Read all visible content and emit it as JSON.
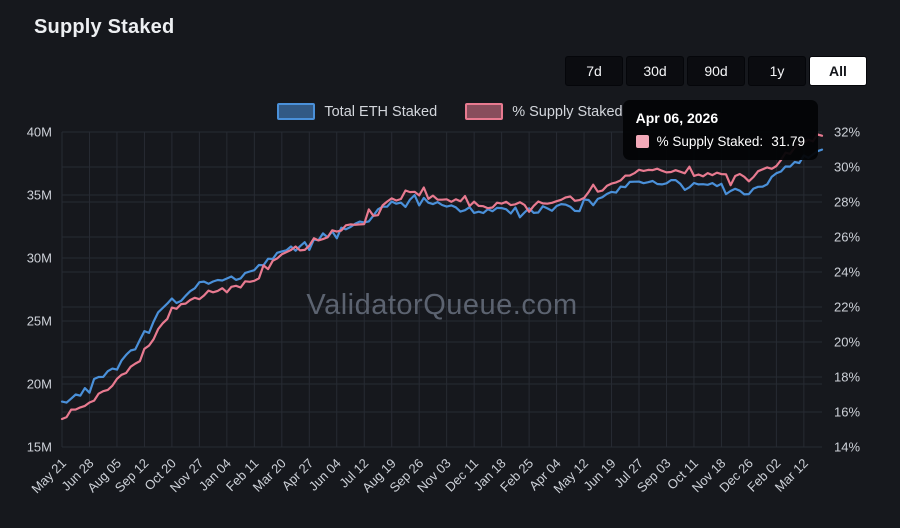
{
  "header": {
    "title": "Supply Staked"
  },
  "controls": {
    "ranges": [
      "7d",
      "30d",
      "90d",
      "1y",
      "All"
    ],
    "selected": "All"
  },
  "colors": {
    "background": "#16181d",
    "grid": "#272b33",
    "axis_text": "#cdd1d8",
    "watermark": "#5c6370",
    "blue_series": "#4a90d9",
    "pink_series": "#e87a90",
    "tooltip_swatch": "#f2a9b8",
    "button_bg": "#0b0c10",
    "button_selected_bg": "#ffffff"
  },
  "chart_data": {
    "type": "line",
    "title": "Supply Staked",
    "watermark": "ValidatorQueue.com",
    "legend_position": "top-center",
    "grid": true,
    "x_tick_labels": [
      "May 21",
      "Jun 28",
      "Aug 05",
      "Sep 12",
      "Oct 20",
      "Nov 27",
      "Jan 04",
      "Feb 11",
      "Mar 20",
      "Apr 27",
      "Jun 04",
      "Jul 12",
      "Aug 19",
      "Sep 26",
      "Nov 03",
      "Dec 11",
      "Jan 18",
      "Feb 25",
      "Apr 04",
      "May 12",
      "Jun 19",
      "Jul 27",
      "Sep 03",
      "Oct 11",
      "Nov 18",
      "Dec 26",
      "Feb 02",
      "Mar 12"
    ],
    "x_end_offset_ticks": 0.66,
    "left_axis": {
      "title": "Total ETH Staked",
      "min": 15,
      "max": 40,
      "tick_step": 5,
      "tick_labels_top_to_bottom": [
        "40M",
        "35M",
        "30M",
        "25M",
        "20M",
        "15M"
      ]
    },
    "right_axis": {
      "title": "% Supply Staked",
      "min": 14,
      "max": 32,
      "tick_step": 2,
      "tick_labels_top_to_bottom": [
        "32%",
        "30%",
        "28%",
        "26%",
        "24%",
        "22%",
        "20%",
        "18%",
        "16%",
        "14%"
      ]
    },
    "series": [
      {
        "name": "Total ETH Staked",
        "axis": "left",
        "unit": "M ETH",
        "color": "#4a90d9",
        "values": [
          18.6,
          20.1,
          21.7,
          24.0,
          27.0,
          27.9,
          28.2,
          28.9,
          30.6,
          31.2,
          32.2,
          32.9,
          34.4,
          34.8,
          34.0,
          33.8,
          33.7,
          33.8,
          34.0,
          34.4,
          35.2,
          36.2,
          36.0,
          35.8,
          35.7,
          35.2,
          36.6,
          37.9,
          38.6
        ]
      },
      {
        "name": "% Supply Staked",
        "axis": "right",
        "unit": "%",
        "color": "#e87a90",
        "values": [
          15.6,
          16.6,
          17.8,
          19.5,
          21.8,
          22.6,
          23.0,
          23.5,
          25.1,
          25.5,
          26.4,
          26.9,
          28.1,
          28.5,
          28.0,
          27.9,
          27.8,
          27.9,
          28.1,
          28.3,
          29.0,
          29.8,
          29.7,
          29.6,
          29.5,
          29.3,
          30.2,
          31.4,
          31.79
        ]
      }
    ],
    "tooltip": {
      "date": "Apr 06, 2026",
      "series_label": "% Supply Staked:",
      "value": 31.79,
      "swatch_color": "#f2a9b8"
    }
  }
}
